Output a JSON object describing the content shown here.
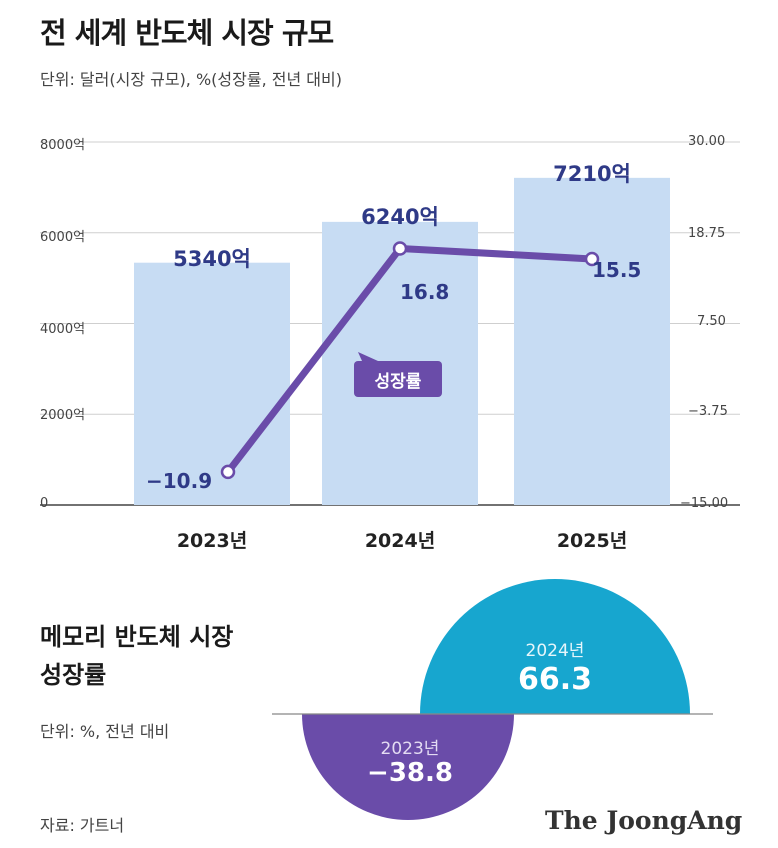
{
  "title": "전 세계 반도체 시장 규모",
  "unit_main": "단위: 달러(시장 규모), %(성장률, 전년 대비)",
  "chart_data": [
    {
      "type": "bar",
      "title": "전 세계 반도체 시장 규모",
      "categories": [
        "2023년",
        "2024년",
        "2025년"
      ],
      "series": [
        {
          "name": "시장 규모",
          "axis": "left",
          "values": [
            5340,
            6240,
            7210
          ],
          "labels": [
            "5340억",
            "6240억",
            "7210억"
          ]
        },
        {
          "name": "성장률",
          "type": "line",
          "axis": "right",
          "values": [
            -10.9,
            16.8,
            15.5
          ],
          "labels": [
            "−10.9",
            "16.8",
            "15.5"
          ]
        }
      ],
      "y_left": {
        "ticks": [
          "0",
          "2000억",
          "4000억",
          "6000억",
          "8000억"
        ],
        "values": [
          0,
          2000,
          4000,
          6000,
          8000
        ],
        "range": [
          0,
          8000
        ]
      },
      "y_right": {
        "ticks": [
          "30.00",
          "18.75",
          "7.50",
          "−3.75",
          "−15.00"
        ],
        "values": [
          30,
          18.75,
          7.5,
          -3.75,
          -15
        ],
        "range": [
          -15,
          30
        ]
      },
      "line_tag": "성장률",
      "colors": {
        "bar": "#c7dcf3",
        "line": "#6a4ca9",
        "label": "#2f3a87"
      }
    },
    {
      "type": "semicircle",
      "title": "메모리 반도체 시장 성장률",
      "categories": [
        "2024년",
        "2023년"
      ],
      "values": [
        66.3,
        -38.8
      ],
      "labels": [
        "66.3",
        "−38.8"
      ],
      "colors": {
        "positive": "#17a6cf",
        "negative": "#6a4ca9"
      }
    }
  ],
  "subtitle2_line1": "메모리 반도체 시장",
  "subtitle2_line2": "성장률",
  "unit_memory": "단위: %, 전년 대비",
  "source": "자료: 가트너",
  "brand": "The JoongAng"
}
